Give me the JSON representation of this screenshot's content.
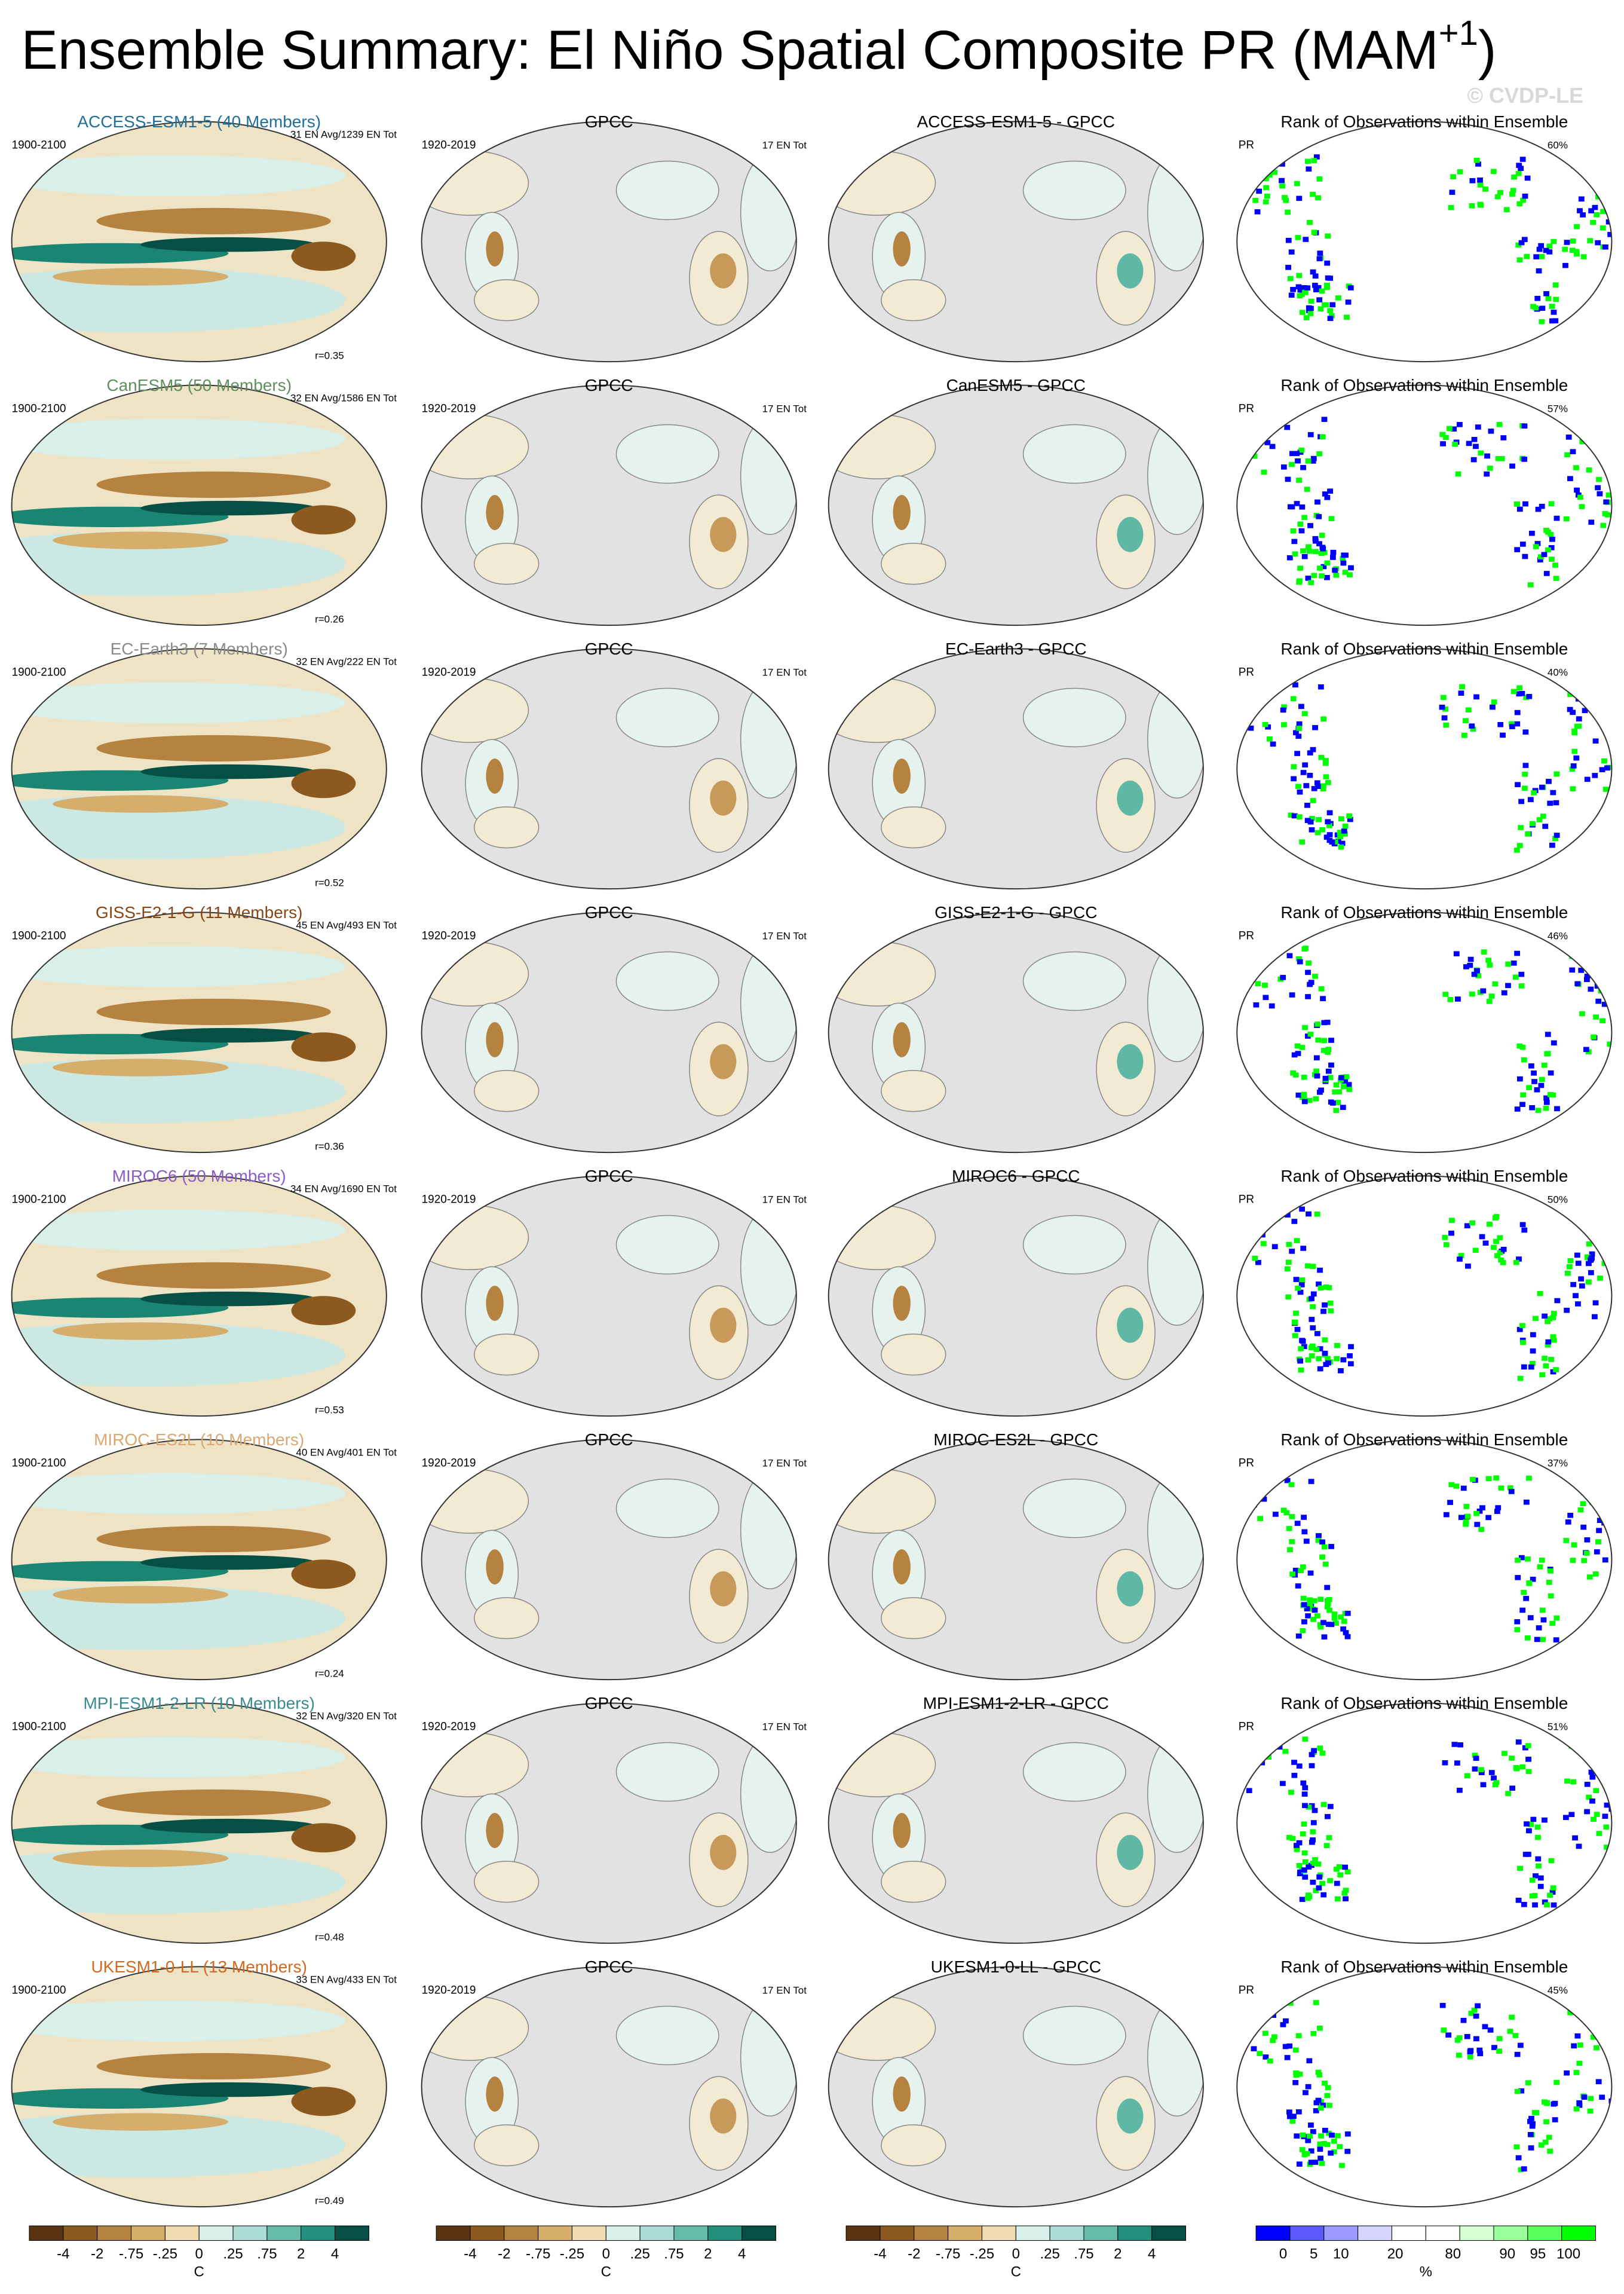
{
  "title": {
    "main": "Ensemble Summary: El Niño Spatial Composite PR (MAM",
    "superscript": "+1",
    "end": ")"
  },
  "watermark": "© CVDP-LE",
  "rows": [
    {
      "model": {
        "name": "ACCESS-ESM1-5 (40 Members)",
        "color": "#1f6f99",
        "period": "1900-2100",
        "stats": "31 EN Avg/1239 EN Tot",
        "r": "r=0.35"
      },
      "obs": {
        "name": "GPCC",
        "period": "1920-2019",
        "stats": "17 EN Tot"
      },
      "diff": {
        "title": "ACCESS-ESM1-5 - GPCC"
      },
      "rank": {
        "title": "Rank of Observations within Ensemble",
        "variable": "PR",
        "percent": "60%"
      }
    },
    {
      "model": {
        "name": "CanESM5 (50 Members)",
        "color": "#5f8f5f",
        "period": "1900-2100",
        "stats": "32 EN Avg/1586 EN Tot",
        "r": "r=0.26"
      },
      "obs": {
        "name": "GPCC",
        "period": "1920-2019",
        "stats": "17 EN Tot"
      },
      "diff": {
        "title": "CanESM5 - GPCC"
      },
      "rank": {
        "title": "Rank of Observations within Ensemble",
        "variable": "PR",
        "percent": "57%"
      }
    },
    {
      "model": {
        "name": "EC-Earth3 (7 Members)",
        "color": "#8a8a8a",
        "period": "1900-2100",
        "stats": "32 EN Avg/222 EN Tot",
        "r": "r=0.52"
      },
      "obs": {
        "name": "GPCC",
        "period": "1920-2019",
        "stats": "17 EN Tot"
      },
      "diff": {
        "title": "EC-Earth3 - GPCC"
      },
      "rank": {
        "title": "Rank of Observations within Ensemble",
        "variable": "PR",
        "percent": "40%"
      }
    },
    {
      "model": {
        "name": "GISS-E2-1-G (11 Members)",
        "color": "#8b4513",
        "period": "1900-2100",
        "stats": "45 EN Avg/493 EN Tot",
        "r": "r=0.36"
      },
      "obs": {
        "name": "GPCC",
        "period": "1920-2019",
        "stats": "17 EN Tot"
      },
      "diff": {
        "title": "GISS-E2-1-G - GPCC"
      },
      "rank": {
        "title": "Rank of Observations within Ensemble",
        "variable": "PR",
        "percent": "46%"
      }
    },
    {
      "model": {
        "name": "MIROC6 (50 Members)",
        "color": "#8a5cc7",
        "period": "1900-2100",
        "stats": "34 EN Avg/1690 EN Tot",
        "r": "r=0.53"
      },
      "obs": {
        "name": "GPCC",
        "period": "1920-2019",
        "stats": "17 EN Tot"
      },
      "diff": {
        "title": "MIROC6 - GPCC"
      },
      "rank": {
        "title": "Rank of Observations within Ensemble",
        "variable": "PR",
        "percent": "50%"
      }
    },
    {
      "model": {
        "name": "MIROC-ES2L (10 Members)",
        "color": "#d9a772",
        "period": "1900-2100",
        "stats": "40 EN Avg/401 EN Tot",
        "r": "r=0.24"
      },
      "obs": {
        "name": "GPCC",
        "period": "1920-2019",
        "stats": "17 EN Tot"
      },
      "diff": {
        "title": "MIROC-ES2L - GPCC"
      },
      "rank": {
        "title": "Rank of Observations within Ensemble",
        "variable": "PR",
        "percent": "37%"
      }
    },
    {
      "model": {
        "name": "MPI-ESM1-2-LR (10 Members)",
        "color": "#3a8a8f",
        "period": "1900-2100",
        "stats": "32 EN Avg/320 EN Tot",
        "r": "r=0.48"
      },
      "obs": {
        "name": "GPCC",
        "period": "1920-2019",
        "stats": "17 EN Tot"
      },
      "diff": {
        "title": "MPI-ESM1-2-LR - GPCC"
      },
      "rank": {
        "title": "Rank of Observations within Ensemble",
        "variable": "PR",
        "percent": "51%"
      }
    },
    {
      "model": {
        "name": "UKESM1-0-LL (13 Members)",
        "color": "#d2691e",
        "period": "1900-2100",
        "stats": "33 EN Avg/433 EN Tot",
        "r": "r=0.49"
      },
      "obs": {
        "name": "GPCC",
        "period": "1920-2019",
        "stats": "17 EN Tot"
      },
      "diff": {
        "title": "UKESM1-0-LL - GPCC"
      },
      "rank": {
        "title": "Rank of Observations within Ensemble",
        "variable": "PR",
        "percent": "45%"
      }
    }
  ],
  "colorbars": [
    {
      "labels": [
        "-4",
        "-2",
        "-.75",
        "-.25",
        "0",
        ".25",
        ".75",
        "2",
        "4"
      ],
      "unit": "C",
      "colors": [
        "#5a3510",
        "#8c5a1e",
        "#b5823f",
        "#d6ad6b",
        "#f0dcae",
        "#d8efea",
        "#a9dcd2",
        "#64bca9",
        "#22907c",
        "#064f44"
      ]
    },
    {
      "labels": [
        "-4",
        "-2",
        "-.75",
        "-.25",
        "0",
        ".25",
        ".75",
        "2",
        "4"
      ],
      "unit": "C",
      "colors": [
        "#5a3510",
        "#8c5a1e",
        "#b5823f",
        "#d6ad6b",
        "#f0dcae",
        "#d8efea",
        "#a9dcd2",
        "#64bca9",
        "#22907c",
        "#064f44"
      ]
    },
    {
      "labels": [
        "-4",
        "-2",
        "-.75",
        "-.25",
        "0",
        ".25",
        ".75",
        "2",
        "4"
      ],
      "unit": "C",
      "colors": [
        "#5a3510",
        "#8c5a1e",
        "#b5823f",
        "#d6ad6b",
        "#f0dcae",
        "#d8efea",
        "#a9dcd2",
        "#64bca9",
        "#22907c",
        "#064f44"
      ]
    },
    {
      "labels": [
        "0",
        "5",
        "10",
        "20",
        "80",
        "90",
        "95",
        "100"
      ],
      "unit": "%",
      "colors": [
        "#0000ff",
        "#5a5aff",
        "#9a9aff",
        "#d4d4ff",
        "#ffffff",
        "#ffffff",
        "#d4ffd4",
        "#9aff9a",
        "#5aff5a",
        "#00ff00"
      ]
    }
  ]
}
